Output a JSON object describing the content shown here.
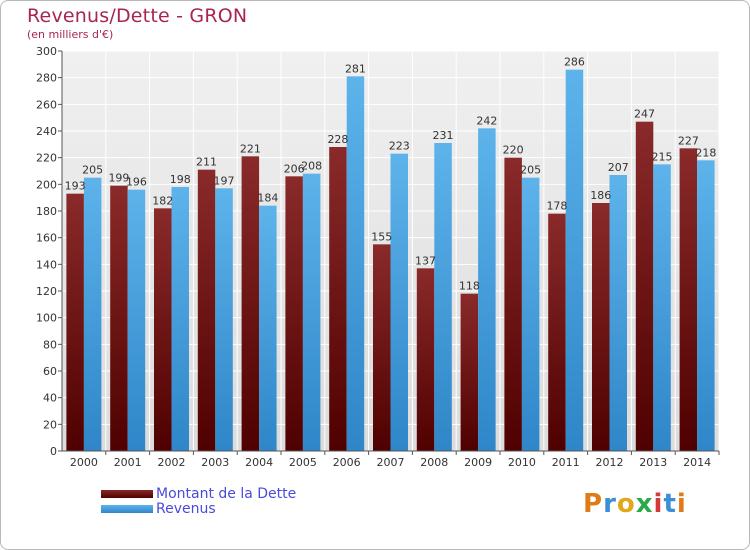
{
  "header": {
    "title": "Revenus/Dette - GRON",
    "subtitle": "(en milliers d'€)"
  },
  "colors": {
    "dette": "#7a1a1a",
    "revenus": "#4aa3e0",
    "title": "#a8264e",
    "legend_text": "#4a4adb"
  },
  "legend": {
    "dette_label": "Montant de la Dette",
    "revenus_label": "Revenus"
  },
  "logo": {
    "text": "Proxiti"
  },
  "chart_data": {
    "type": "bar",
    "categories": [
      "2000",
      "2001",
      "2002",
      "2003",
      "2004",
      "2005",
      "2006",
      "2007",
      "2008",
      "2009",
      "2010",
      "2011",
      "2012",
      "2013",
      "2014"
    ],
    "series": [
      {
        "name": "Montant de la Dette",
        "values": [
          193,
          199,
          182,
          211,
          221,
          206,
          228,
          155,
          137,
          118,
          220,
          178,
          186,
          247,
          227
        ]
      },
      {
        "name": "Revenus",
        "values": [
          205,
          196,
          198,
          197,
          184,
          208,
          281,
          223,
          231,
          242,
          205,
          286,
          207,
          215,
          218
        ]
      }
    ],
    "ylim": [
      0,
      300
    ],
    "yticks": [
      0,
      20,
      40,
      60,
      80,
      100,
      120,
      140,
      160,
      180,
      200,
      220,
      240,
      260,
      280,
      300
    ],
    "grid": true,
    "legend_position": "bottom-left"
  }
}
